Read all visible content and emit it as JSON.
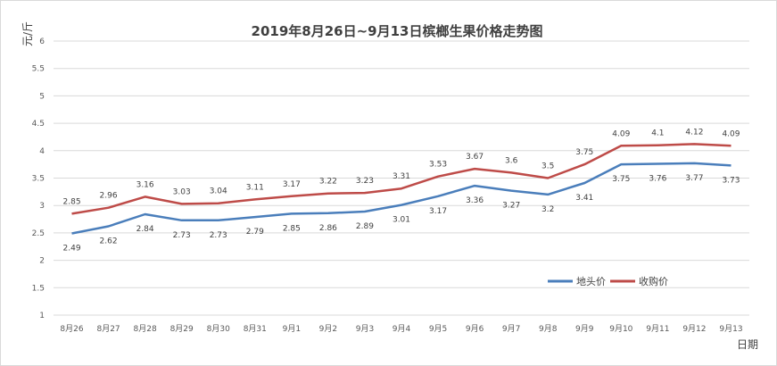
{
  "chart_data": {
    "type": "line",
    "title": "2019年8月26日~9月13日槟榔生果价格走势图",
    "xlabel": "日期",
    "ylabel": "元/斤",
    "ylim": [
      1,
      6
    ],
    "yticks": [
      "1",
      "1.5",
      "2",
      "2.5",
      "3",
      "3.5",
      "4",
      "4.5",
      "5",
      "5.5",
      "6"
    ],
    "categories": [
      "8月26",
      "8月27",
      "8月28",
      "8月29",
      "8月30",
      "8月31",
      "9月1",
      "9月2",
      "9月3",
      "9月4",
      "9月5",
      "9月6",
      "9月7",
      "9月8",
      "9月9",
      "9月10",
      "9月11",
      "9月12",
      "9月13"
    ],
    "series": [
      {
        "name": "地头价",
        "color": "#4a7ebb",
        "values": [
          2.49,
          2.62,
          2.84,
          2.73,
          2.73,
          2.79,
          2.85,
          2.86,
          2.89,
          3.01,
          3.17,
          3.36,
          3.27,
          3.2,
          3.41,
          3.75,
          3.76,
          3.77,
          3.73
        ],
        "labels": [
          "2.49",
          "2.62",
          "2.84",
          "2.73",
          "2.73",
          "2.79",
          "2.85",
          "2.86",
          "2.89",
          "3.01",
          "3.17",
          "3.36",
          "3.27",
          "3.2",
          "3.41",
          "3.75",
          "3.76",
          "3.77",
          "3.73"
        ]
      },
      {
        "name": "收购价",
        "color": "#be4b48",
        "values": [
          2.85,
          2.96,
          3.16,
          3.03,
          3.04,
          3.11,
          3.17,
          3.22,
          3.23,
          3.31,
          3.53,
          3.67,
          3.6,
          3.5,
          3.75,
          4.09,
          4.1,
          4.12,
          4.09
        ],
        "labels": [
          "2.85",
          "2.96",
          "3.16",
          "3.03",
          "3.04",
          "3.11",
          "3.17",
          "3.22",
          "3.23",
          "3.31",
          "3.53",
          "3.67",
          "3.6",
          "3.5",
          "3.75",
          "4.09",
          "4.1",
          "4.12",
          "4.09"
        ]
      }
    ],
    "grid": true,
    "legend_position": "bottom-right"
  }
}
